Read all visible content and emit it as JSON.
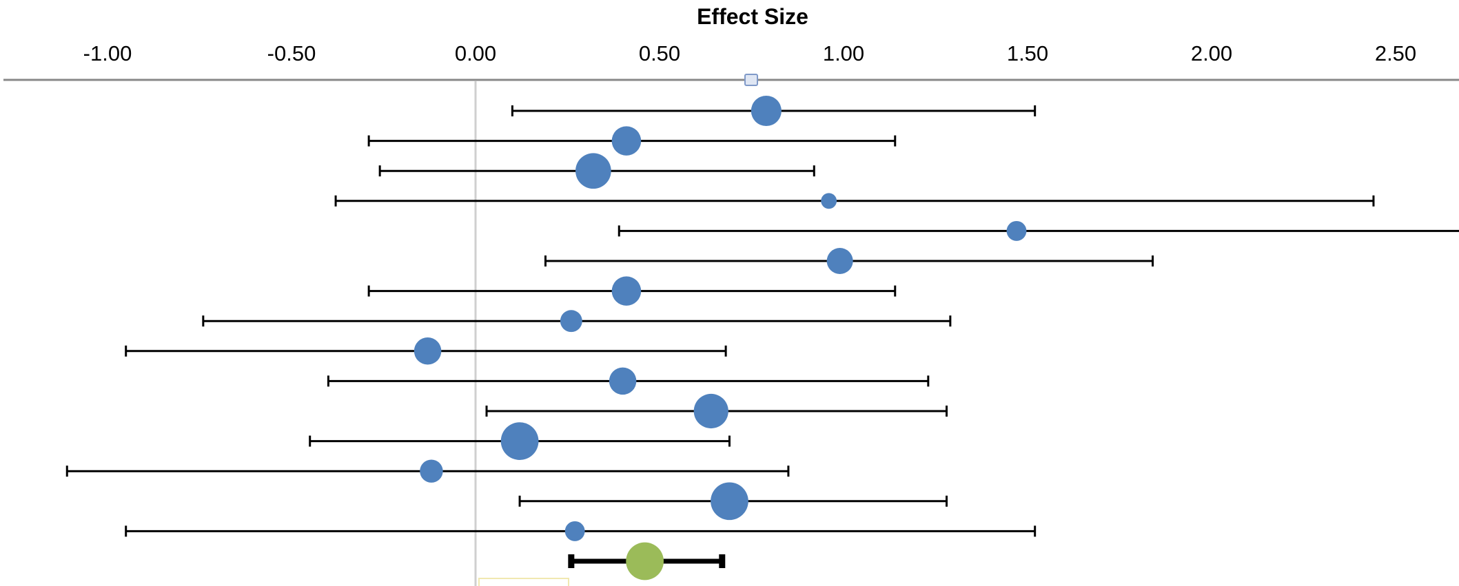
{
  "chart_data": {
    "type": "scatter",
    "title": "",
    "xlabel": "Effect Size",
    "ylabel": "",
    "xlim": [
      -1.0,
      2.65
    ],
    "x_ticks": [
      "-1.00",
      "-0.50",
      "0.00",
      "0.50",
      "1.00",
      "1.50",
      "2.00",
      "2.50"
    ],
    "x_tick_values": [
      -1.0,
      -0.5,
      0.0,
      0.5,
      1.0,
      1.5,
      2.0,
      2.5
    ],
    "reference_line": 0.0,
    "grid": false,
    "x_axis_position": "top",
    "series": [
      {
        "style": "study",
        "color": "#4F81BD",
        "points": [
          {
            "est": 0.79,
            "lo": 0.1,
            "hi": 1.52,
            "weight": 0.58
          },
          {
            "est": 0.41,
            "lo": -0.29,
            "hi": 1.14,
            "weight": 0.56
          },
          {
            "est": 0.32,
            "lo": -0.26,
            "hi": 0.92,
            "weight": 0.68
          },
          {
            "est": 0.96,
            "lo": -0.38,
            "hi": 2.44,
            "weight": 0.3
          },
          {
            "est": 1.47,
            "lo": 0.39,
            "hi": 2.7,
            "weight": 0.38
          },
          {
            "est": 0.99,
            "lo": 0.19,
            "hi": 1.84,
            "weight": 0.5
          },
          {
            "est": 0.41,
            "lo": -0.29,
            "hi": 1.14,
            "weight": 0.56
          },
          {
            "est": 0.26,
            "lo": -0.74,
            "hi": 1.29,
            "weight": 0.42
          },
          {
            "est": -0.13,
            "lo": -0.95,
            "hi": 0.68,
            "weight": 0.52
          },
          {
            "est": 0.4,
            "lo": -0.4,
            "hi": 1.23,
            "weight": 0.52
          },
          {
            "est": 0.64,
            "lo": 0.03,
            "hi": 1.28,
            "weight": 0.66
          },
          {
            "est": 0.12,
            "lo": -0.45,
            "hi": 0.69,
            "weight": 0.72
          },
          {
            "est": -0.12,
            "lo": -1.11,
            "hi": 0.85,
            "weight": 0.44
          },
          {
            "est": 0.69,
            "lo": 0.12,
            "hi": 1.28,
            "weight": 0.72
          },
          {
            "est": 0.27,
            "lo": -0.95,
            "hi": 1.52,
            "weight": 0.38
          }
        ]
      },
      {
        "style": "summary",
        "color": "#9BBB59",
        "points": [
          {
            "est": 0.46,
            "lo": 0.26,
            "hi": 0.67,
            "weight": 0.72
          }
        ]
      }
    ]
  }
}
